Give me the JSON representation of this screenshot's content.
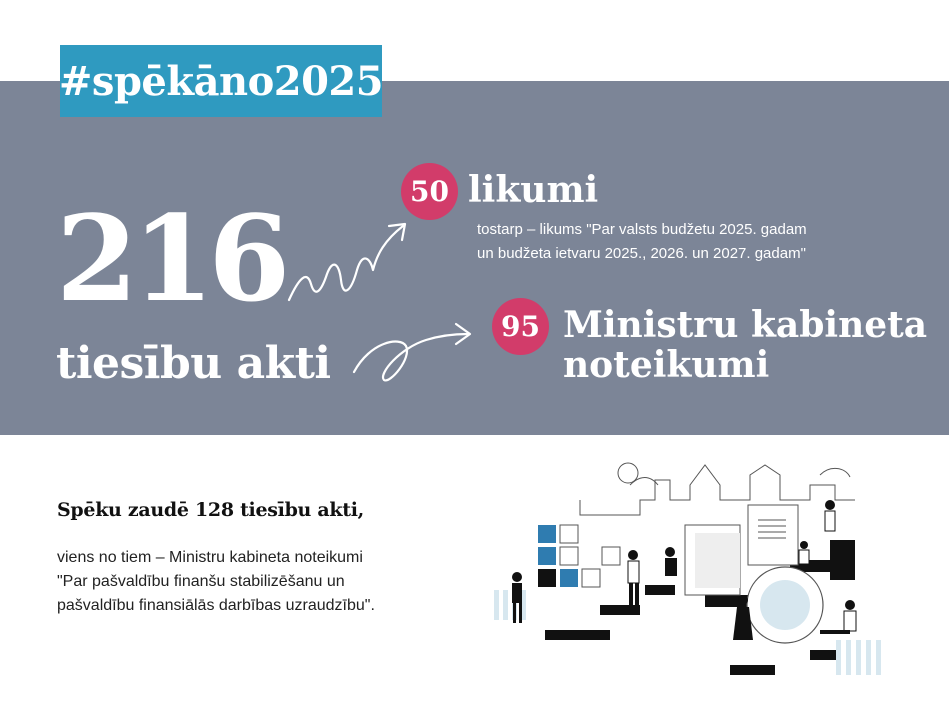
{
  "colors": {
    "band": "#7c8597",
    "hashtag_bg": "#2f9ac0",
    "badge": "#d23c6a",
    "illus_blue": "#2f7cb0",
    "illus_light": "#d7e7ef"
  },
  "hashtag": "#spēkāno2025",
  "total": {
    "number": "216",
    "label": "tiesību akti"
  },
  "laws": {
    "count": "50",
    "label": "likumi",
    "note_lines": [
      "tostarp – likums \"Par valsts budžetu 2025. gadam",
      "un budžeta ietvaru  2025., 2026.  un 2027. gadam\""
    ]
  },
  "regulations": {
    "count": "95",
    "label_lines": [
      "Ministru kabineta",
      "noteikumi"
    ]
  },
  "repealed": {
    "title": "Spēku zaudē 128 tiesību akti,",
    "lines": [
      "viens no tiem – Ministru kabineta noteikumi",
      "\"Par pašvaldību finanšu stabilizēšanu un",
      "pašvaldību finansiālās darbības uzraudzību\"."
    ]
  },
  "icons": {
    "arrow_up": "zigzag-arrow-icon",
    "arrow_right": "loop-arrow-icon",
    "illustration": "people-illustration"
  }
}
